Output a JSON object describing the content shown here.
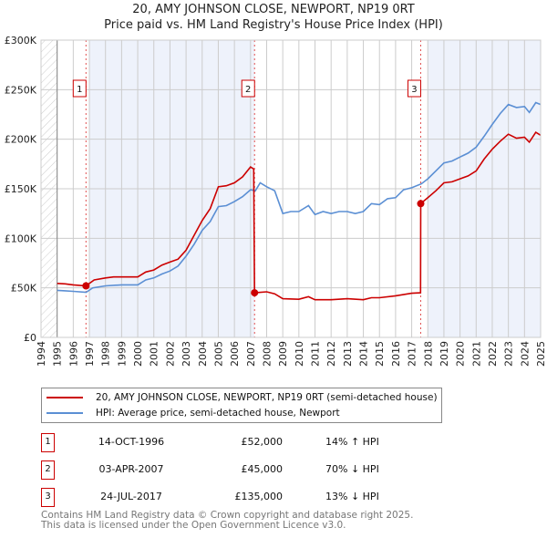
{
  "chart_data": {
    "type": "line",
    "title": "20, AMY JOHNSON CLOSE, NEWPORT, NP19 0RT",
    "subtitle": "Price paid vs. HM Land Registry's House Price Index (HPI)",
    "xlim": [
      1994,
      2025
    ],
    "ylim": [
      0,
      300000
    ],
    "y_ticks": [
      {
        "v": 0,
        "label": "£0"
      },
      {
        "v": 50000,
        "label": "£50K"
      },
      {
        "v": 100000,
        "label": "£100K"
      },
      {
        "v": 150000,
        "label": "£150K"
      },
      {
        "v": 200000,
        "label": "£200K"
      },
      {
        "v": 250000,
        "label": "£250K"
      },
      {
        "v": 300000,
        "label": "£300K"
      }
    ],
    "x_ticks": [
      "1994",
      "1995",
      "1996",
      "1997",
      "1998",
      "1999",
      "2000",
      "2001",
      "2002",
      "2003",
      "2004",
      "2005",
      "2006",
      "2007",
      "2008",
      "2009",
      "2010",
      "2011",
      "2012",
      "2013",
      "2014",
      "2015",
      "2016",
      "2017",
      "2018",
      "2019",
      "2020",
      "2021",
      "2022",
      "2023",
      "2024",
      "2025"
    ],
    "grid": true,
    "series": [
      {
        "name": "20, AMY JOHNSON CLOSE, NEWPORT, NP19 0RT (semi-detached house)",
        "color": "#cc0000",
        "x": [
          1995,
          1995.5,
          1996,
          1996.79,
          1997.3,
          1998,
          1998.5,
          1999,
          2000,
          2000.5,
          2001,
          2001.5,
          2002,
          2002.5,
          2003,
          2003.5,
          2004,
          2004.5,
          2005,
          2005.5,
          2006,
          2006.5,
          2007,
          2007.2,
          2007.25,
          2008,
          2008.5,
          2009,
          2010,
          2010.6,
          2011,
          2012,
          2013,
          2014,
          2014.5,
          2015,
          2016,
          2017,
          2017.55,
          2017.56,
          2018,
          2018.5,
          2019,
          2019.5,
          2020,
          2020.5,
          2021,
          2021.5,
          2022,
          2022.5,
          2023,
          2023.5,
          2024,
          2024.3,
          2024.7,
          2025
        ],
        "y": [
          54500,
          54000,
          53000,
          52000,
          58000,
          60000,
          61000,
          61000,
          61000,
          66000,
          68000,
          73000,
          76000,
          79000,
          88000,
          103000,
          118000,
          130000,
          152000,
          153000,
          156000,
          162000,
          172000,
          170000,
          45000,
          46000,
          44000,
          39000,
          38500,
          41000,
          38000,
          38000,
          39000,
          38000,
          40000,
          40000,
          42000,
          44500,
          45000,
          135000,
          141000,
          148000,
          156000,
          157000,
          160000,
          163000,
          168000,
          180000,
          190000,
          198000,
          205000,
          201000,
          202000,
          197000,
          207000,
          204000
        ]
      },
      {
        "name": "HPI: Average price, semi-detached house, Newport",
        "color": "#5b8fd4",
        "x": [
          1995,
          1995.5,
          1996,
          1996.8,
          1997.2,
          1998,
          1999,
          2000,
          2000.5,
          2001,
          2001.5,
          2002,
          2002.5,
          2003,
          2003.5,
          2004,
          2004.5,
          2005,
          2005.5,
          2006,
          2006.5,
          2007,
          2007.3,
          2007.6,
          2008,
          2008.5,
          2009,
          2009.5,
          2010,
          2010.6,
          2011,
          2011.5,
          2012,
          2012.5,
          2013,
          2013.5,
          2014,
          2014.5,
          2015,
          2015.5,
          2016,
          2016.5,
          2017,
          2017.6,
          2018,
          2018.5,
          2019,
          2019.5,
          2020,
          2020.5,
          2021,
          2021.5,
          2022,
          2022.5,
          2023,
          2023.5,
          2024,
          2024.3,
          2024.7,
          2025
        ],
        "y": [
          47500,
          47000,
          46500,
          45500,
          50000,
          52000,
          53000,
          53000,
          58000,
          60000,
          64000,
          67000,
          72000,
          82000,
          94000,
          108000,
          117000,
          132000,
          133000,
          137000,
          142000,
          149000,
          148000,
          156000,
          152000,
          148000,
          125000,
          127000,
          127000,
          133000,
          124000,
          127000,
          125000,
          127000,
          127000,
          125000,
          127000,
          135000,
          134000,
          140000,
          141000,
          149000,
          151000,
          155000,
          160000,
          168000,
          176000,
          178000,
          182000,
          186000,
          192000,
          203000,
          215000,
          226000,
          235000,
          232000,
          233000,
          227000,
          237000,
          235000
        ]
      }
    ],
    "sales": [
      {
        "n": "1",
        "x": 1996.79,
        "y": 52000
      },
      {
        "n": "2",
        "x": 2007.25,
        "y": 45000
      },
      {
        "n": "3",
        "x": 2017.56,
        "y": 135000
      }
    ],
    "legend_placement": "below"
  },
  "legend": [
    "20, AMY JOHNSON CLOSE, NEWPORT, NP19 0RT (semi-detached house)",
    "HPI: Average price, semi-detached house, Newport"
  ],
  "table": [
    {
      "n": "1",
      "date": "14-OCT-1996",
      "price": "£52,000",
      "hpi": "14% ↑ HPI"
    },
    {
      "n": "2",
      "date": "03-APR-2007",
      "price": "£45,000",
      "hpi": "70% ↓ HPI"
    },
    {
      "n": "3",
      "date": "24-JUL-2017",
      "price": "£135,000",
      "hpi": "13% ↓ HPI"
    }
  ],
  "footer": [
    "Contains HM Land Registry data © Crown copyright and database right 2025.",
    "This data is licensed under the Open Government Licence v3.0."
  ],
  "colors": {
    "red": "#cc0000",
    "blue": "#5b8fd4",
    "shade": "#eef2fb"
  }
}
